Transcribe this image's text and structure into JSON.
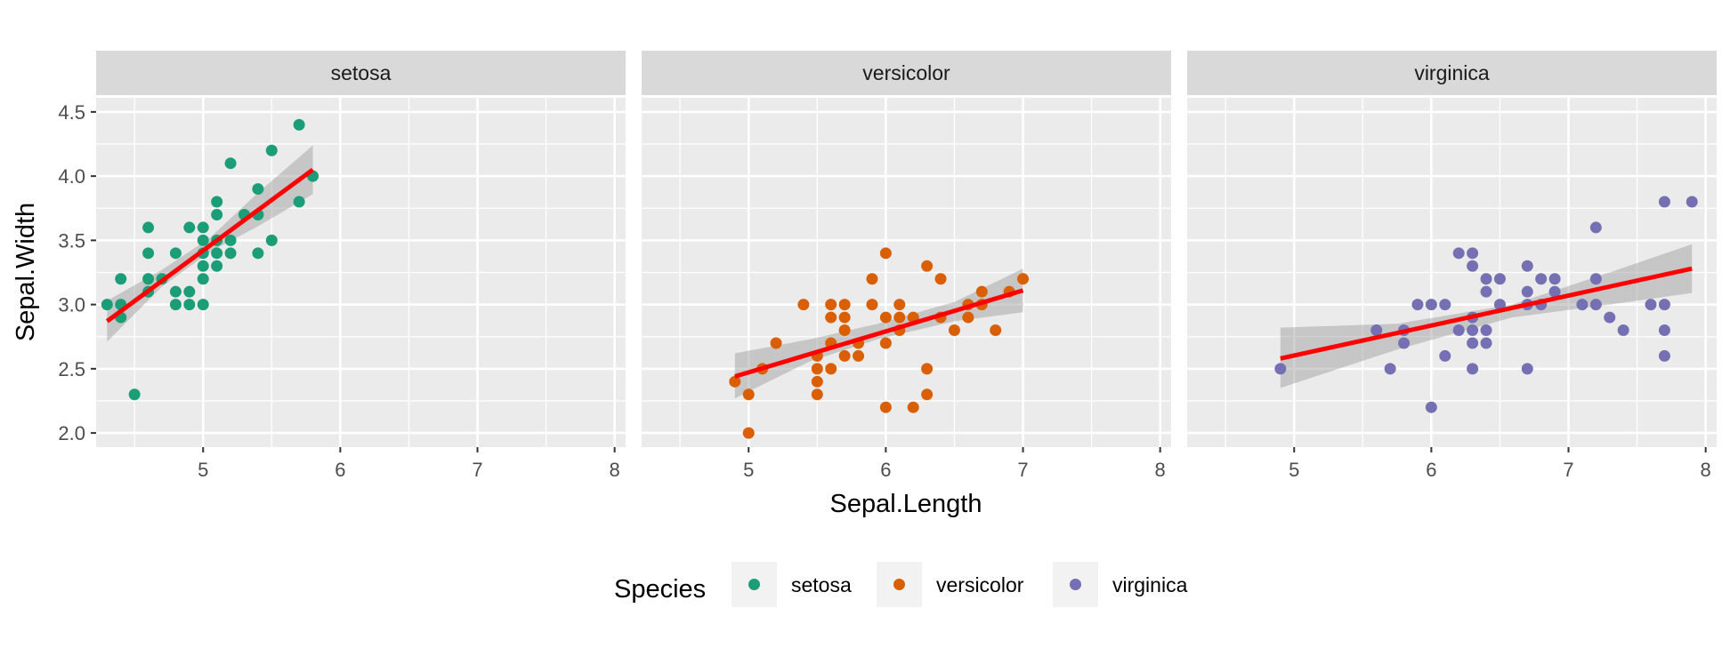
{
  "chart_data": {
    "type": "scatter",
    "xlabel": "Sepal.Length",
    "ylabel": "Sepal.Width",
    "xlim": [
      4.22,
      8.08
    ],
    "ylim": [
      1.89,
      4.61
    ],
    "x_ticks": [
      5,
      6,
      7,
      8
    ],
    "y_ticks": [
      2.0,
      2.5,
      3.0,
      3.5,
      4.0,
      4.5
    ],
    "x_tick_labels": [
      "5",
      "6",
      "7",
      "8"
    ],
    "y_tick_labels": [
      "2.0",
      "2.5",
      "3.0",
      "3.5",
      "4.0",
      "4.5"
    ],
    "grid": true,
    "legend_title": "Species",
    "legend_position": "bottom",
    "fit_line_color": "#ff0000",
    "facets": [
      {
        "name": "setosa",
        "color": "#1b9e77",
        "points": [
          [
            4.3,
            3.0
          ],
          [
            4.4,
            2.9
          ],
          [
            4.4,
            3.0
          ],
          [
            4.4,
            3.2
          ],
          [
            4.5,
            2.3
          ],
          [
            4.6,
            3.1
          ],
          [
            4.6,
            3.2
          ],
          [
            4.6,
            3.4
          ],
          [
            4.6,
            3.6
          ],
          [
            4.7,
            3.2
          ],
          [
            4.8,
            3.0
          ],
          [
            4.8,
            3.1
          ],
          [
            4.8,
            3.4
          ],
          [
            4.9,
            3.0
          ],
          [
            4.9,
            3.1
          ],
          [
            4.9,
            3.6
          ],
          [
            5.0,
            3.0
          ],
          [
            5.0,
            3.2
          ],
          [
            5.0,
            3.3
          ],
          [
            5.0,
            3.4
          ],
          [
            5.0,
            3.5
          ],
          [
            5.0,
            3.6
          ],
          [
            5.1,
            3.3
          ],
          [
            5.1,
            3.4
          ],
          [
            5.1,
            3.5
          ],
          [
            5.1,
            3.7
          ],
          [
            5.1,
            3.8
          ],
          [
            5.2,
            3.4
          ],
          [
            5.2,
            3.5
          ],
          [
            5.2,
            4.1
          ],
          [
            5.3,
            3.7
          ],
          [
            5.4,
            3.4
          ],
          [
            5.4,
            3.7
          ],
          [
            5.4,
            3.9
          ],
          [
            5.5,
            3.5
          ],
          [
            5.5,
            4.2
          ],
          [
            5.7,
            3.8
          ],
          [
            5.7,
            4.4
          ],
          [
            5.8,
            4.0
          ]
        ],
        "fit": {
          "x0": 4.3,
          "y0": 2.87,
          "x1": 5.8,
          "y1": 4.05
        },
        "band": [
          [
            4.3,
            2.71,
            3.03
          ],
          [
            4.7,
            3.14,
            3.27
          ],
          [
            5.05,
            3.41,
            3.52
          ],
          [
            5.4,
            3.61,
            3.87
          ],
          [
            5.8,
            3.86,
            4.24
          ]
        ]
      },
      {
        "name": "versicolor",
        "color": "#d95f02",
        "points": [
          [
            4.9,
            2.4
          ],
          [
            5.0,
            2.0
          ],
          [
            5.0,
            2.3
          ],
          [
            5.1,
            2.5
          ],
          [
            5.2,
            2.7
          ],
          [
            5.4,
            3.0
          ],
          [
            5.5,
            2.3
          ],
          [
            5.5,
            2.4
          ],
          [
            5.5,
            2.5
          ],
          [
            5.5,
            2.6
          ],
          [
            5.6,
            2.5
          ],
          [
            5.6,
            2.7
          ],
          [
            5.6,
            2.9
          ],
          [
            5.6,
            3.0
          ],
          [
            5.7,
            2.6
          ],
          [
            5.7,
            2.8
          ],
          [
            5.7,
            2.9
          ],
          [
            5.7,
            3.0
          ],
          [
            5.8,
            2.6
          ],
          [
            5.8,
            2.7
          ],
          [
            5.9,
            3.0
          ],
          [
            5.9,
            3.2
          ],
          [
            6.0,
            2.2
          ],
          [
            6.0,
            2.7
          ],
          [
            6.0,
            2.9
          ],
          [
            6.0,
            3.4
          ],
          [
            6.1,
            2.8
          ],
          [
            6.1,
            2.9
          ],
          [
            6.1,
            3.0
          ],
          [
            6.2,
            2.2
          ],
          [
            6.2,
            2.9
          ],
          [
            6.3,
            2.3
          ],
          [
            6.3,
            2.5
          ],
          [
            6.3,
            3.3
          ],
          [
            6.4,
            2.9
          ],
          [
            6.4,
            3.2
          ],
          [
            6.5,
            2.8
          ],
          [
            6.6,
            2.9
          ],
          [
            6.6,
            3.0
          ],
          [
            6.7,
            3.0
          ],
          [
            6.7,
            3.1
          ],
          [
            6.8,
            2.8
          ],
          [
            6.9,
            3.1
          ],
          [
            7.0,
            3.2
          ]
        ],
        "fit": {
          "x0": 4.9,
          "y0": 2.44,
          "x1": 7.0,
          "y1": 3.11
        },
        "band": [
          [
            4.9,
            2.27,
            2.62
          ],
          [
            5.45,
            2.56,
            2.73
          ],
          [
            5.94,
            2.73,
            2.85
          ],
          [
            6.5,
            2.87,
            3.02
          ],
          [
            7.0,
            2.94,
            3.28
          ]
        ]
      },
      {
        "name": "virginica",
        "color": "#7570b3",
        "points": [
          [
            4.9,
            2.5
          ],
          [
            5.6,
            2.8
          ],
          [
            5.7,
            2.5
          ],
          [
            5.8,
            2.7
          ],
          [
            5.8,
            2.8
          ],
          [
            5.9,
            3.0
          ],
          [
            6.0,
            2.2
          ],
          [
            6.0,
            3.0
          ],
          [
            6.1,
            2.6
          ],
          [
            6.1,
            3.0
          ],
          [
            6.2,
            2.8
          ],
          [
            6.2,
            3.4
          ],
          [
            6.3,
            2.5
          ],
          [
            6.3,
            2.7
          ],
          [
            6.3,
            2.8
          ],
          [
            6.3,
            2.9
          ],
          [
            6.3,
            3.3
          ],
          [
            6.3,
            3.4
          ],
          [
            6.4,
            2.7
          ],
          [
            6.4,
            2.8
          ],
          [
            6.4,
            3.1
          ],
          [
            6.4,
            3.2
          ],
          [
            6.5,
            3.0
          ],
          [
            6.5,
            3.2
          ],
          [
            6.7,
            2.5
          ],
          [
            6.7,
            3.0
          ],
          [
            6.7,
            3.1
          ],
          [
            6.7,
            3.3
          ],
          [
            6.8,
            3.0
          ],
          [
            6.8,
            3.2
          ],
          [
            6.9,
            3.1
          ],
          [
            6.9,
            3.2
          ],
          [
            7.1,
            3.0
          ],
          [
            7.2,
            3.0
          ],
          [
            7.2,
            3.2
          ],
          [
            7.2,
            3.6
          ],
          [
            7.3,
            2.9
          ],
          [
            7.4,
            2.8
          ],
          [
            7.6,
            3.0
          ],
          [
            7.7,
            2.6
          ],
          [
            7.7,
            2.8
          ],
          [
            7.7,
            3.0
          ],
          [
            7.7,
            3.8
          ],
          [
            7.9,
            3.8
          ]
        ],
        "fit": {
          "x0": 4.9,
          "y0": 2.58,
          "x1": 7.9,
          "y1": 3.28
        },
        "band": [
          [
            4.9,
            2.35,
            2.82
          ],
          [
            5.75,
            2.65,
            2.85
          ],
          [
            6.59,
            2.9,
            3.0
          ],
          [
            7.3,
            3.0,
            3.25
          ],
          [
            7.9,
            3.09,
            3.47
          ]
        ]
      }
    ]
  }
}
